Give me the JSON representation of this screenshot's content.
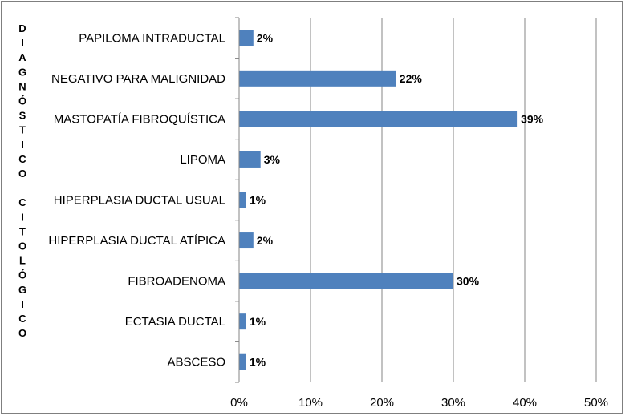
{
  "chart_data": {
    "type": "bar",
    "orientation": "horizontal",
    "title": "",
    "xlabel": "",
    "ylabel": "DIAGNÓSTICO CITOLÓGICO",
    "categories": [
      "PAPILOMA INTRADUCTAL",
      "NEGATIVO PARA MALIGNIDAD",
      "MASTOPATÍA FIBROQUÍSTICA",
      "LIPOMA",
      "HIPERPLASIA DUCTAL USUAL",
      "HIPERPLASIA DUCTAL ATÍPICA",
      "FIBROADENOMA",
      "ECTASIA DUCTAL",
      "ABSCESO"
    ],
    "values": [
      2,
      22,
      39,
      3,
      1,
      2,
      30,
      1,
      1
    ],
    "data_labels": [
      "2%",
      "22%",
      "39%",
      "3%",
      "1%",
      "2%",
      "30%",
      "1%",
      "1%"
    ],
    "xlim": [
      0,
      50
    ],
    "x_ticks": [
      "0%",
      "10%",
      "20%",
      "30%",
      "40%",
      "50%"
    ],
    "grid": "vertical",
    "legend": "none",
    "bar_color": "#4f81bd"
  }
}
